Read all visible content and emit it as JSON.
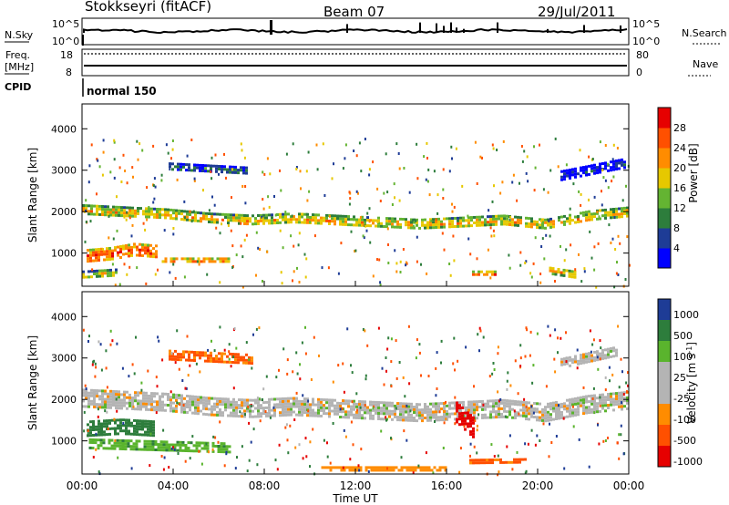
{
  "header": {
    "station": "Stokkseyri (fitACF)",
    "beam": "Beam 07",
    "date": "29/Jul/2011"
  },
  "status_panels": {
    "nsky": {
      "label": "N.Sky",
      "ticks": [
        "10^5",
        "10^0"
      ]
    },
    "nsearch": {
      "label": "N.Search",
      "ticks": [
        "10^5",
        "10^0"
      ]
    },
    "freq": {
      "label_line1": "Freq.",
      "label_line2": "[MHz]",
      "ticks": [
        "18",
        "8"
      ]
    },
    "nave": {
      "label": "Nave",
      "ticks": [
        "80",
        "0"
      ]
    },
    "cpid": {
      "label": "CPID",
      "mode": "normal 150"
    }
  },
  "colors": {
    "power": [
      "#0000ff",
      "#1e3c96",
      "#2d7d3c",
      "#64b432",
      "#e6c800",
      "#ff8c00",
      "#ff5000",
      "#e60000"
    ],
    "velocity": [
      "#1e3c96",
      "#2d7d3c",
      "#5ab42d",
      "#b4b4b4",
      "#b4b4b4",
      "#ff8c00",
      "#ff5000",
      "#e60000"
    ],
    "gray": "#bebebe"
  },
  "chart_data": [
    {
      "type": "heatmap",
      "name": "power",
      "xlabel": "",
      "ylabel": "Slant Range [km]",
      "ylim": [
        200,
        4600
      ],
      "xlim": [
        0,
        24
      ],
      "y_ticks": [
        1000,
        2000,
        3000,
        4000
      ],
      "colorbar": {
        "label": "Power [dB]",
        "ticks": [
          "4",
          "8",
          "12",
          "16",
          "20",
          "24",
          "28"
        ],
        "range": [
          0,
          32
        ]
      },
      "bands": [
        {
          "t0": 0.0,
          "t1": 24.0,
          "r_mid": [
            2050,
            2000,
            1950,
            1850,
            1800,
            1850,
            1800,
            1750,
            1700,
            1750,
            1800,
            1700,
            1900,
            2000
          ],
          "width": 260,
          "value": 20
        },
        {
          "t0": 0.2,
          "t1": 3.3,
          "r_mid": [
            950,
            1000,
            1100,
            1050
          ],
          "width": 300,
          "value": 27
        },
        {
          "t0": 0.0,
          "t1": 1.5,
          "r_mid": [
            500,
            550
          ],
          "width": 160,
          "value": 18
        },
        {
          "t0": 3.8,
          "t1": 7.2,
          "r_mid": [
            3100,
            3050,
            3000
          ],
          "width": 180,
          "value": 10
        },
        {
          "t0": 17.0,
          "t1": 18.2,
          "r_mid": [
            520,
            520
          ],
          "width": 120,
          "value": 25
        },
        {
          "t0": 20.5,
          "t1": 21.7,
          "r_mid": [
            600,
            500
          ],
          "width": 140,
          "value": 22
        },
        {
          "t0": 21.0,
          "t1": 23.8,
          "r_mid": [
            2900,
            3200
          ],
          "width": 200,
          "value": 6
        },
        {
          "t0": 3.5,
          "t1": 6.5,
          "r_mid": [
            850,
            850
          ],
          "width": 90,
          "value": 26
        }
      ]
    },
    {
      "type": "heatmap",
      "name": "velocity",
      "xlabel": "Time UT",
      "ylabel": "Slant Range [km]",
      "ylim": [
        200,
        4600
      ],
      "xlim": [
        0,
        24
      ],
      "x_ticks": [
        "00:00",
        "04:00",
        "08:00",
        "12:00",
        "16:00",
        "20:00",
        "00:00"
      ],
      "y_ticks": [
        1000,
        2000,
        3000,
        4000
      ],
      "colorbar": {
        "label": "Velocity [m s^-1]",
        "ticks": [
          "1000",
          "500",
          "100",
          "25",
          "-25",
          "-100",
          "-500",
          "-1000"
        ]
      },
      "bands": [
        {
          "t0": 0.0,
          "t1": 24.0,
          "r_mid": [
            2050,
            2000,
            1950,
            1850,
            1800,
            1850,
            1800,
            1750,
            1700,
            1750,
            1800,
            1700,
            1900,
            2000
          ],
          "width": 420,
          "value": 0
        },
        {
          "t0": 0.2,
          "t1": 3.2,
          "r_mid": [
            1300,
            1350,
            1300
          ],
          "width": 380,
          "value": 400
        },
        {
          "t0": 0.3,
          "t1": 6.5,
          "r_mid": [
            950,
            900,
            850
          ],
          "width": 220,
          "value": 80
        },
        {
          "t0": 3.8,
          "t1": 7.5,
          "r_mid": [
            3100,
            3050,
            3000
          ],
          "width": 200,
          "value": -110
        },
        {
          "t0": 16.4,
          "t1": 17.2,
          "r_mid": [
            1700,
            1300
          ],
          "width": 500,
          "value": -700
        },
        {
          "t0": 17.0,
          "t1": 19.5,
          "r_mid": [
            500,
            520
          ],
          "width": 130,
          "value": -120
        },
        {
          "t0": 10.5,
          "t1": 16.0,
          "r_mid": [
            350,
            350
          ],
          "width": 80,
          "value": -60
        },
        {
          "t0": 21.0,
          "t1": 23.5,
          "r_mid": [
            2900,
            3200
          ],
          "width": 200,
          "value": 0
        }
      ]
    }
  ]
}
